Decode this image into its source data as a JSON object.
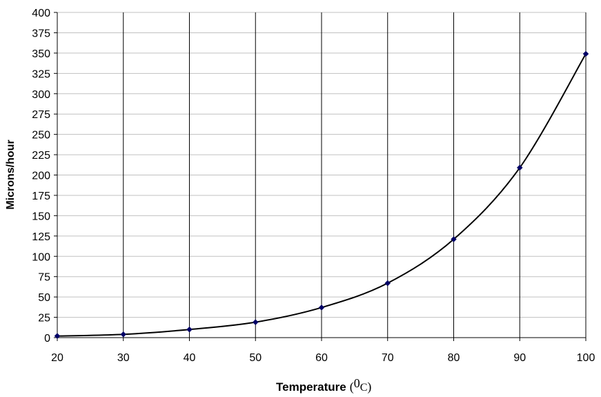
{
  "chart_data": {
    "type": "line",
    "title": "",
    "xlabel": "Temperature",
    "xlabel_unit_open": "(",
    "xlabel_unit_superscript": "0",
    "xlabel_unit_letter": "C",
    "xlabel_unit_close": ")",
    "ylabel": "Microns/hour",
    "xlim": [
      20,
      100
    ],
    "ylim": [
      0,
      400
    ],
    "xticks": [
      "20",
      "30",
      "40",
      "50",
      "60",
      "70",
      "80",
      "90",
      "100"
    ],
    "yticks": [
      "0",
      "25",
      "50",
      "75",
      "100",
      "125",
      "150",
      "175",
      "200",
      "225",
      "250",
      "275",
      "300",
      "325",
      "350",
      "375",
      "400"
    ],
    "grid": {
      "horizontal": true,
      "vertical": true
    },
    "series": [
      {
        "x": [
          20,
          30,
          40,
          50,
          60,
          70,
          80,
          90,
          100
        ],
        "y": [
          2,
          4,
          10,
          19,
          37,
          67,
          121,
          209,
          349
        ]
      }
    ],
    "colors": {
      "line": "#000000",
      "marker": "#000066",
      "hgrid": "#c0c0c0",
      "vgrid": "#000000"
    }
  }
}
